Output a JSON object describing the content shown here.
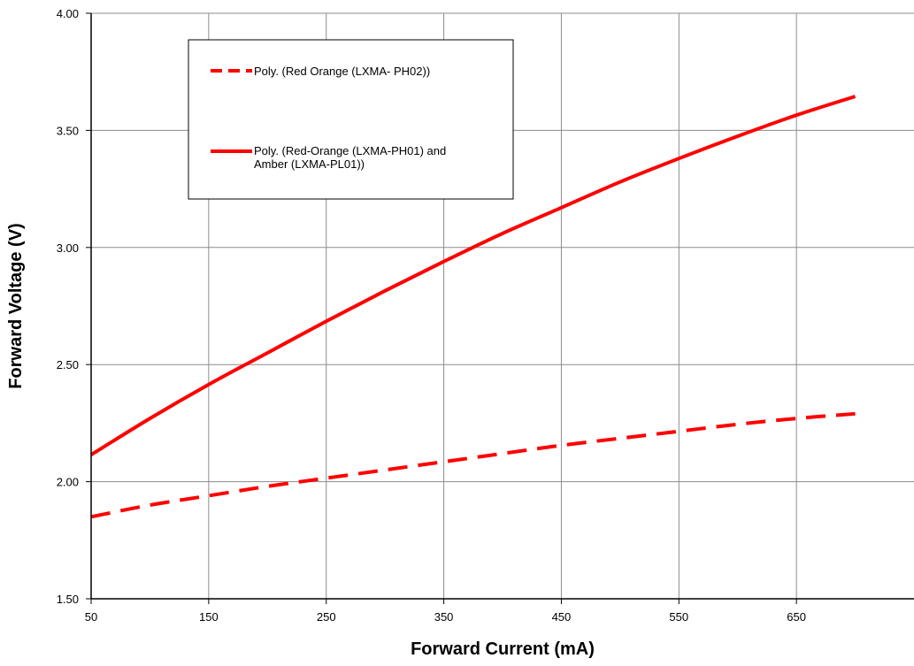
{
  "chart_data": {
    "type": "line",
    "title": "",
    "xlabel": "Forward Current (mA)",
    "ylabel": "Forward Voltage (V)",
    "xlim": [
      50,
      750
    ],
    "ylim": [
      1.5,
      4.0
    ],
    "x_ticks": [
      50,
      150,
      250,
      350,
      450,
      550,
      650
    ],
    "x_tick_labels": [
      "50",
      "150",
      "250",
      "350",
      "450",
      "550",
      "650"
    ],
    "y_ticks": [
      1.5,
      2.0,
      2.5,
      3.0,
      3.5,
      4.0
    ],
    "y_tick_labels": [
      "1.50",
      "2.00",
      "2.50",
      "3.00",
      "3.50",
      "4.00"
    ],
    "grid": true,
    "legend_position": "top-left",
    "series": [
      {
        "name": "Poly. (Red Orange (LXMA- PH02))",
        "legend_lines": [
          "Poly. (Red Orange (LXMA- PH02))"
        ],
        "color": "#ff0000",
        "style": "dashed",
        "x": [
          50,
          100,
          150,
          200,
          250,
          300,
          350,
          400,
          450,
          500,
          550,
          600,
          650,
          700
        ],
        "y": [
          1.85,
          1.9,
          1.94,
          1.98,
          2.015,
          2.05,
          2.085,
          2.12,
          2.155,
          2.185,
          2.215,
          2.245,
          2.27,
          2.29
        ]
      },
      {
        "name": "Poly. (Red-Orange (LXMA-PH01) and Amber (LXMA-PL01))",
        "legend_lines": [
          "Poly. (Red-Orange (LXMA-PH01) and",
          "Amber (LXMA-PL01))"
        ],
        "color": "#ff0000",
        "style": "solid",
        "x": [
          50,
          100,
          150,
          200,
          250,
          300,
          350,
          400,
          450,
          500,
          550,
          600,
          650,
          700
        ],
        "y": [
          2.115,
          2.27,
          2.415,
          2.55,
          2.685,
          2.815,
          2.94,
          3.06,
          3.17,
          3.28,
          3.38,
          3.475,
          3.565,
          3.645
        ]
      }
    ]
  }
}
